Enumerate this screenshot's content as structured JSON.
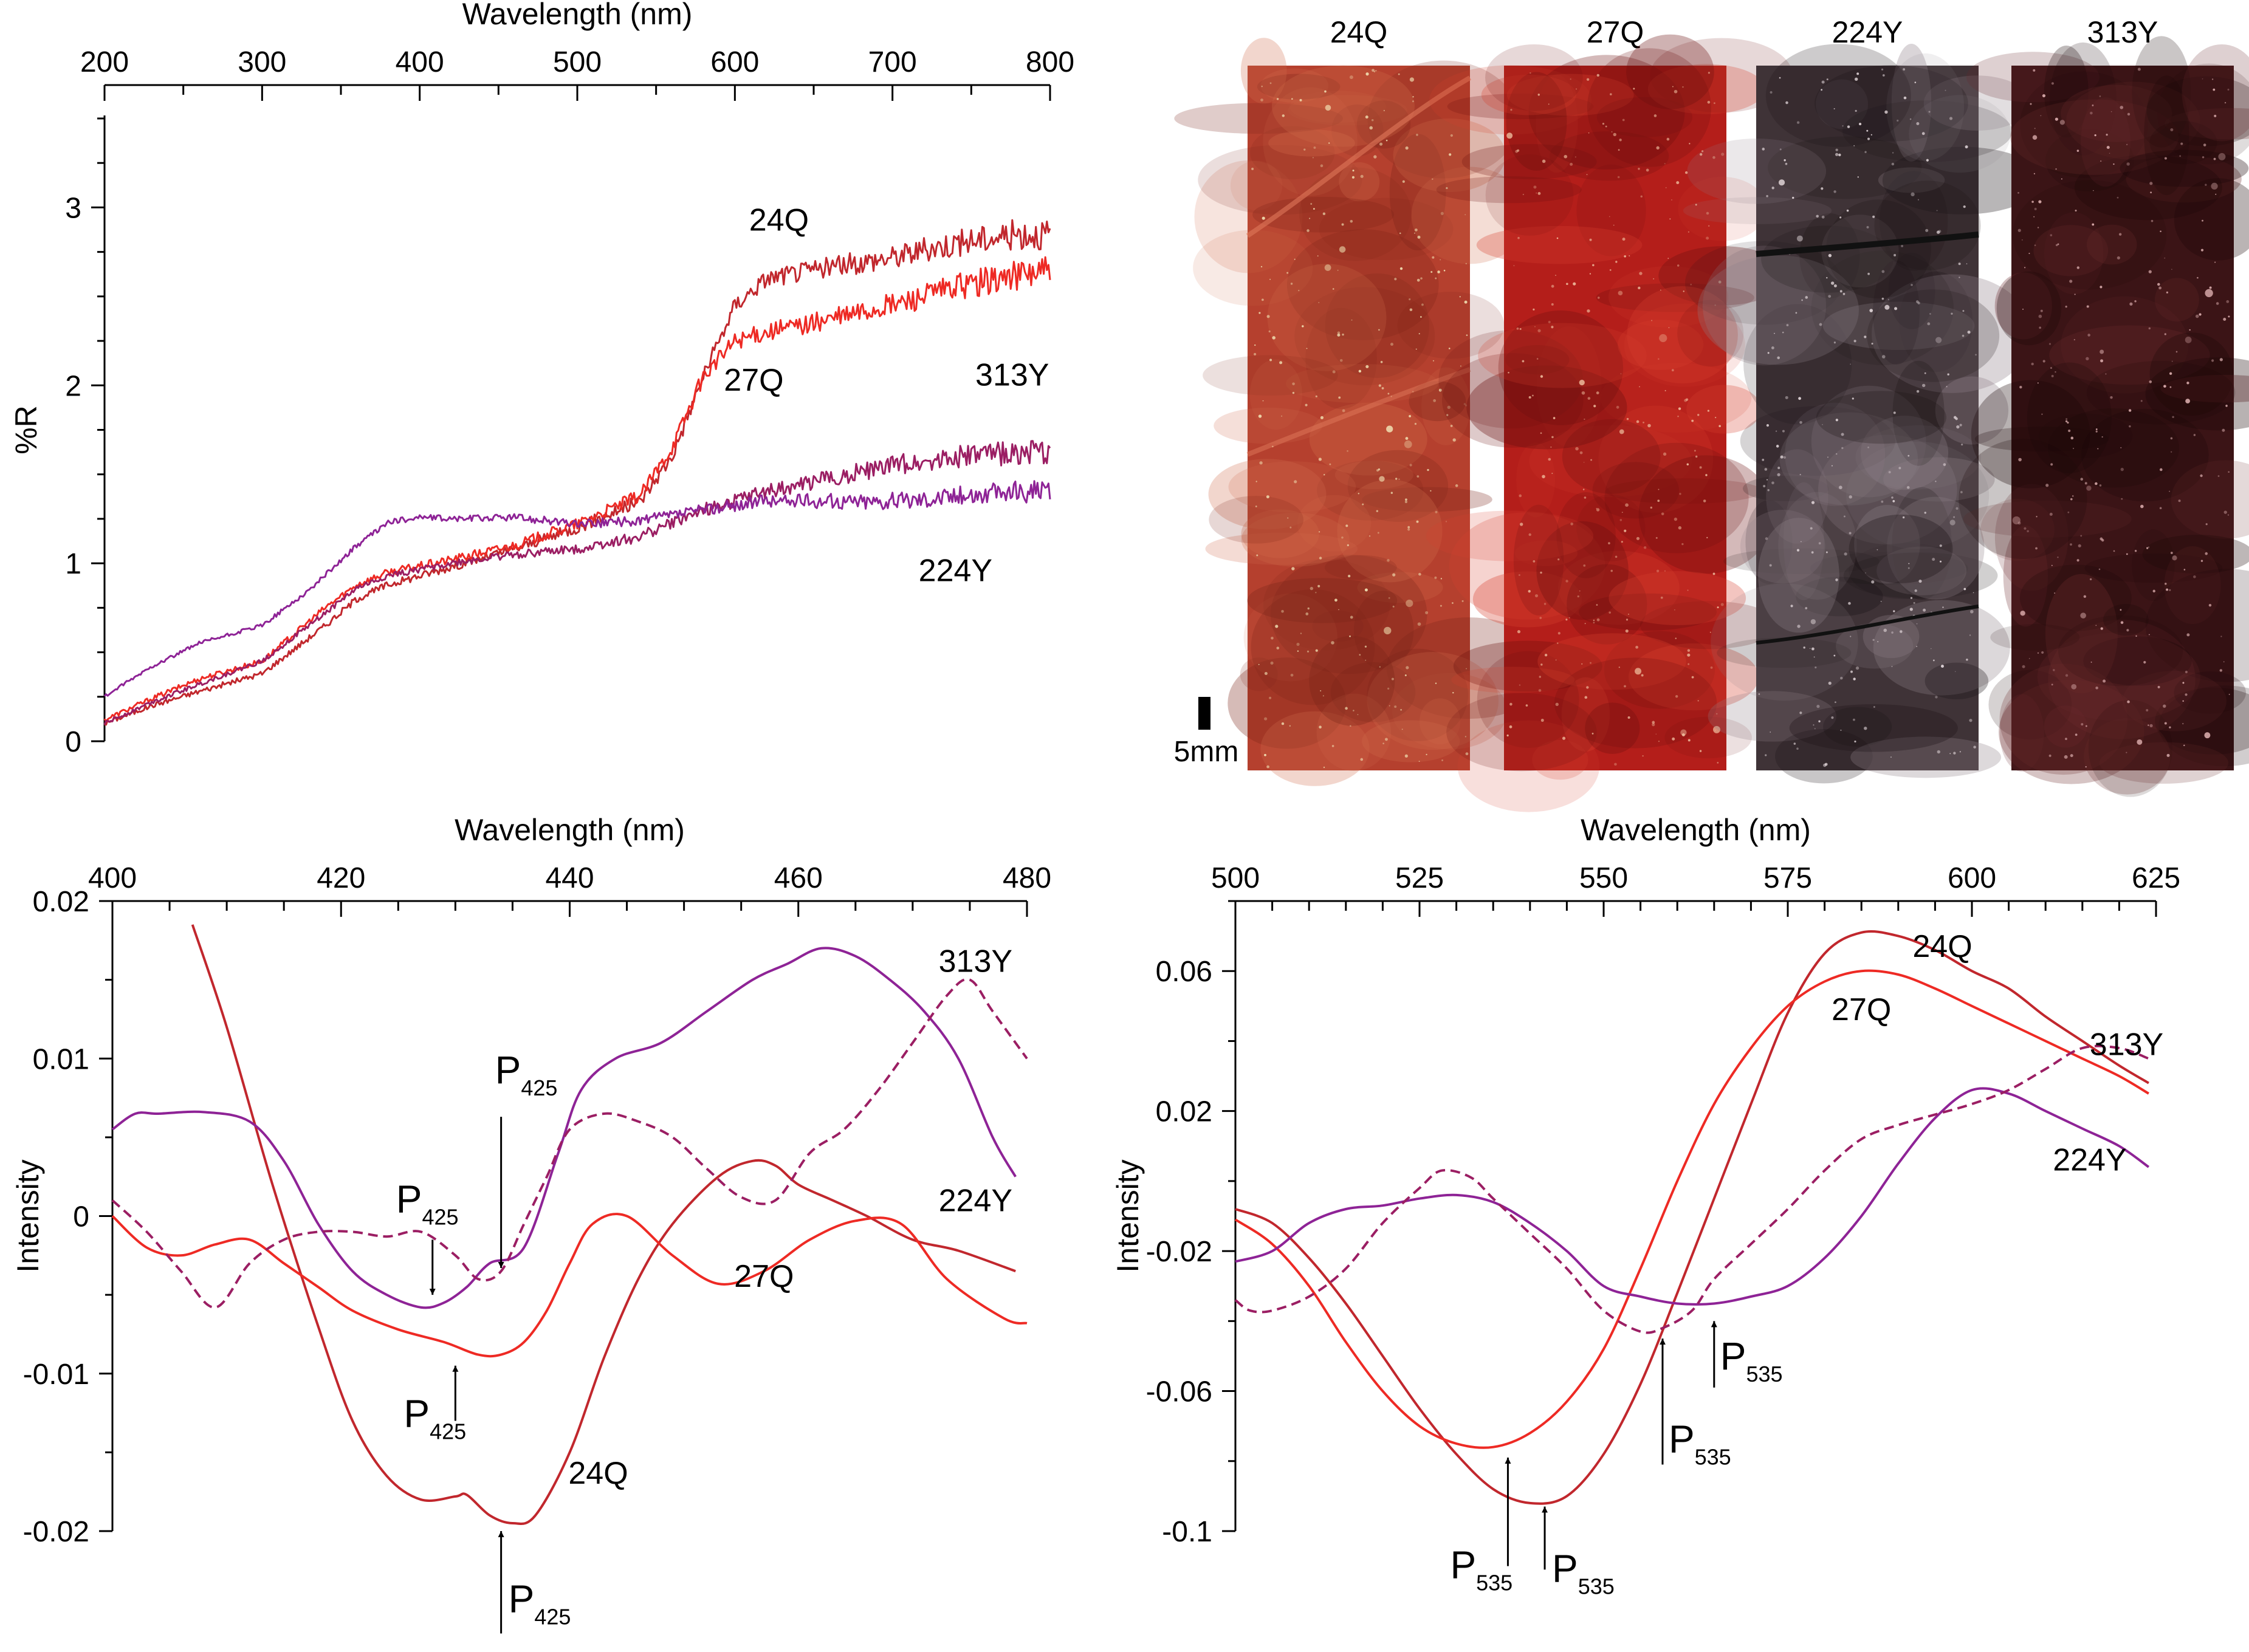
{
  "colors": {
    "red": "#ee2a24",
    "darkred": "#c1272d",
    "purple": "#8e2396",
    "magenta": "#9b1e63",
    "axis": "#000000"
  },
  "chart_data": [
    {
      "id": "reflectance",
      "type": "line",
      "title": "",
      "xlabel": "Wavelength (nm)",
      "ylabel": "%R",
      "xlim": [
        200,
        800
      ],
      "ylim": [
        0,
        3.5
      ],
      "xticks": [
        200,
        300,
        400,
        500,
        600,
        700,
        800
      ],
      "yticks": [
        0,
        1,
        2,
        3
      ],
      "series": [
        {
          "name": "24Q",
          "color": "#c1272d",
          "noise": 0.11,
          "x": [
            200,
            230,
            260,
            300,
            340,
            360,
            380,
            420,
            460,
            500,
            540,
            560,
            580,
            600,
            620,
            650,
            700,
            740,
            780,
            800
          ],
          "y": [
            0.1,
            0.2,
            0.28,
            0.38,
            0.65,
            0.8,
            0.88,
            0.98,
            1.08,
            1.2,
            1.35,
            1.6,
            2.05,
            2.45,
            2.6,
            2.65,
            2.72,
            2.8,
            2.85,
            2.85
          ]
        },
        {
          "name": "27Q",
          "color": "#ee2a24",
          "noise": 0.11,
          "x": [
            200,
            230,
            260,
            300,
            340,
            360,
            380,
            420,
            460,
            500,
            540,
            560,
            580,
            600,
            620,
            650,
            700,
            740,
            780,
            800
          ],
          "y": [
            0.12,
            0.24,
            0.35,
            0.45,
            0.75,
            0.88,
            0.95,
            1.02,
            1.1,
            1.22,
            1.38,
            1.65,
            2.05,
            2.25,
            2.3,
            2.35,
            2.45,
            2.55,
            2.62,
            2.65
          ]
        },
        {
          "name": "313Y",
          "color": "#9b1e63",
          "noise": 0.09,
          "x": [
            200,
            230,
            260,
            300,
            340,
            360,
            380,
            420,
            460,
            500,
            540,
            580,
            620,
            660,
            700,
            740,
            780,
            800
          ],
          "y": [
            0.1,
            0.22,
            0.32,
            0.45,
            0.72,
            0.86,
            0.93,
            1.0,
            1.05,
            1.08,
            1.15,
            1.3,
            1.4,
            1.48,
            1.55,
            1.6,
            1.62,
            1.62
          ]
        },
        {
          "name": "224Y",
          "color": "#8e2396",
          "noise": 0.08,
          "x": [
            200,
            230,
            260,
            300,
            330,
            360,
            380,
            400,
            420,
            460,
            500,
            540,
            580,
            620,
            660,
            700,
            740,
            780,
            800
          ],
          "y": [
            0.25,
            0.42,
            0.55,
            0.65,
            0.85,
            1.1,
            1.23,
            1.26,
            1.25,
            1.26,
            1.22,
            1.24,
            1.3,
            1.35,
            1.35,
            1.35,
            1.38,
            1.4,
            1.4
          ]
        }
      ],
      "annotations": [
        {
          "text": "24Q",
          "x": 628,
          "y": 2.87
        },
        {
          "text": "27Q",
          "x": 612,
          "y": 1.97
        },
        {
          "text": "313Y",
          "x": 776,
          "y": 2.0
        },
        {
          "text": "224Y",
          "x": 740,
          "y": 0.9
        }
      ]
    },
    {
      "id": "intensity_425",
      "type": "line",
      "title": "",
      "xlabel": "Wavelength (nm)",
      "ylabel": "Intensity",
      "xlim": [
        400,
        480
      ],
      "ylim": [
        -0.02,
        0.02
      ],
      "xticks": [
        400,
        420,
        440,
        460,
        480
      ],
      "yticks": [
        0.02,
        0.01,
        0,
        -0.01,
        -0.02
      ],
      "yticklabels": [
        "0.02",
        "0.01",
        "0",
        "-0.01",
        "-0.02"
      ],
      "series": [
        {
          "name": "24Q",
          "color": "#c1272d",
          "dash": false,
          "x": [
            407,
            410,
            414,
            418,
            421,
            424,
            427,
            430,
            431,
            433,
            435,
            437,
            440,
            443,
            446,
            449,
            453,
            456,
            458,
            460,
            463,
            466,
            470,
            474,
            479
          ],
          "y": [
            0.0185,
            0.012,
            0.002,
            -0.007,
            -0.013,
            -0.0165,
            -0.018,
            -0.0178,
            -0.0177,
            -0.019,
            -0.0195,
            -0.019,
            -0.015,
            -0.009,
            -0.004,
            -0.0005,
            0.0025,
            0.0035,
            0.0032,
            0.002,
            0.001,
            0.0,
            -0.0015,
            -0.0022,
            -0.0035
          ]
        },
        {
          "name": "27Q",
          "color": "#ee2a24",
          "dash": false,
          "x": [
            400,
            403,
            406,
            409,
            412,
            415,
            418,
            421,
            425,
            429,
            432,
            434,
            436,
            438,
            440,
            442,
            445,
            449,
            453,
            457,
            461,
            465,
            469,
            473,
            478,
            480
          ],
          "y": [
            0.0,
            -0.002,
            -0.0025,
            -0.0018,
            -0.0015,
            -0.003,
            -0.0045,
            -0.006,
            -0.0072,
            -0.008,
            -0.0088,
            -0.0088,
            -0.008,
            -0.006,
            -0.003,
            -0.0005,
            0.0,
            -0.0025,
            -0.0043,
            -0.0035,
            -0.0015,
            -0.0003,
            -0.0005,
            -0.004,
            -0.0065,
            -0.0068
          ]
        },
        {
          "name": "224Y",
          "color": "#8e2396",
          "dash": false,
          "x": [
            400,
            402,
            404,
            408,
            412,
            415,
            418,
            421,
            424,
            427,
            429,
            431,
            433,
            436,
            439,
            441,
            444,
            448,
            452,
            456,
            459,
            462,
            465,
            468,
            471,
            474,
            477,
            479
          ],
          "y": [
            0.0055,
            0.0065,
            0.0065,
            0.0066,
            0.006,
            0.0035,
            -0.0005,
            -0.0035,
            -0.005,
            -0.0058,
            -0.0055,
            -0.0045,
            -0.003,
            -0.002,
            0.004,
            0.008,
            0.01,
            0.011,
            0.013,
            0.015,
            0.016,
            0.017,
            0.0165,
            0.015,
            0.013,
            0.01,
            0.005,
            0.0025
          ]
        },
        {
          "name": "313Y",
          "color": "#9b1e63",
          "dash": true,
          "x": [
            400,
            403,
            406,
            409,
            412,
            415,
            418,
            421,
            424,
            427,
            430,
            432,
            434,
            436,
            438,
            440,
            443,
            446,
            449,
            452,
            455,
            458,
            461,
            464,
            467,
            470,
            473,
            475,
            477,
            480
          ],
          "y": [
            0.001,
            -0.001,
            -0.0035,
            -0.0058,
            -0.003,
            -0.0015,
            -0.001,
            -0.001,
            -0.0013,
            -0.001,
            -0.0025,
            -0.004,
            -0.0035,
            -0.0005,
            0.0025,
            0.0055,
            0.0065,
            0.006,
            0.005,
            0.003,
            0.0012,
            0.001,
            0.004,
            0.0055,
            0.008,
            0.011,
            0.014,
            0.015,
            0.013,
            0.01
          ]
        }
      ],
      "annotations": [
        {
          "text": "313Y",
          "x": 475.5,
          "y": 0.0155
        },
        {
          "text": "224Y",
          "x": 475.5,
          "y": 0.0003
        },
        {
          "text": "27Q",
          "x": 457,
          "y": -0.0045
        },
        {
          "text": "24Q",
          "x": 442.5,
          "y": -0.017
        }
      ],
      "markers": [
        {
          "label": "P",
          "sub": "425",
          "x": 434,
          "dir": "down",
          "y_tip": -0.0033,
          "y_tail": 0.0063
        },
        {
          "label": "P",
          "sub": "425",
          "x": 428,
          "dir": "down",
          "y_tip": -0.005,
          "y_tail": -0.0015
        },
        {
          "label": "P",
          "sub": "425",
          "x": 430,
          "dir": "up",
          "y_tip": -0.0095,
          "y_tail": -0.013
        },
        {
          "label": "P",
          "sub": "425",
          "x": 434,
          "dir": "up",
          "y_tip": -0.02,
          "y_tail": -0.0265
        }
      ]
    },
    {
      "id": "intensity_535",
      "type": "line",
      "title": "",
      "xlabel": "Wavelength (nm)",
      "ylabel": "Intensity",
      "xlim": [
        500,
        625
      ],
      "ylim": [
        -0.1,
        0.08
      ],
      "xticks": [
        500,
        525,
        550,
        575,
        600,
        625
      ],
      "yticks": [
        0.06,
        0.02,
        -0.02,
        -0.06,
        -0.1
      ],
      "yticklabels": [
        "0.06",
        "0.02",
        "-0.02",
        "-0.06",
        "-0.1"
      ],
      "series": [
        {
          "name": "24Q",
          "color": "#c1272d",
          "dash": false,
          "x": [
            500,
            505,
            510,
            515,
            520,
            525,
            530,
            535,
            540,
            545,
            550,
            555,
            560,
            565,
            570,
            575,
            580,
            585,
            590,
            595,
            600,
            605,
            610,
            615,
            620,
            624
          ],
          "y": [
            -0.008,
            -0.012,
            -0.022,
            -0.035,
            -0.05,
            -0.065,
            -0.078,
            -0.088,
            -0.092,
            -0.09,
            -0.078,
            -0.058,
            -0.032,
            -0.005,
            0.022,
            0.048,
            0.065,
            0.071,
            0.07,
            0.066,
            0.06,
            0.055,
            0.047,
            0.04,
            0.033,
            0.028
          ]
        },
        {
          "name": "27Q",
          "color": "#ee2a24",
          "dash": false,
          "x": [
            500,
            505,
            510,
            515,
            520,
            525,
            530,
            535,
            540,
            545,
            550,
            555,
            560,
            565,
            570,
            575,
            580,
            585,
            590,
            595,
            600,
            605,
            610,
            615,
            620,
            624
          ],
          "y": [
            -0.011,
            -0.018,
            -0.03,
            -0.046,
            -0.06,
            -0.07,
            -0.075,
            -0.076,
            -0.072,
            -0.063,
            -0.048,
            -0.025,
            0.0,
            0.022,
            0.038,
            0.05,
            0.057,
            0.06,
            0.059,
            0.055,
            0.05,
            0.045,
            0.04,
            0.035,
            0.03,
            0.025
          ]
        },
        {
          "name": "224Y",
          "color": "#8e2396",
          "dash": false,
          "x": [
            500,
            505,
            510,
            515,
            520,
            525,
            530,
            535,
            540,
            545,
            550,
            555,
            560,
            565,
            570,
            575,
            580,
            585,
            590,
            595,
            600,
            605,
            610,
            615,
            620,
            624
          ],
          "y": [
            -0.023,
            -0.02,
            -0.012,
            -0.008,
            -0.007,
            -0.005,
            -0.004,
            -0.006,
            -0.012,
            -0.02,
            -0.03,
            -0.033,
            -0.035,
            -0.035,
            -0.033,
            -0.03,
            -0.022,
            -0.01,
            0.005,
            0.018,
            0.026,
            0.025,
            0.02,
            0.015,
            0.01,
            0.004
          ]
        },
        {
          "name": "313Y",
          "color": "#9b1e63",
          "dash": true,
          "x": [
            500,
            502,
            505,
            510,
            515,
            520,
            525,
            528,
            532,
            535,
            540,
            545,
            550,
            555,
            558,
            562,
            565,
            570,
            575,
            580,
            585,
            590,
            595,
            600,
            605,
            610,
            615,
            620,
            624
          ],
          "y": [
            -0.034,
            -0.037,
            -0.037,
            -0.033,
            -0.025,
            -0.012,
            -0.002,
            0.003,
            0.001,
            -0.005,
            -0.015,
            -0.025,
            -0.037,
            -0.043,
            -0.042,
            -0.037,
            -0.028,
            -0.018,
            -0.008,
            0.003,
            0.012,
            0.016,
            0.019,
            0.022,
            0.026,
            0.032,
            0.038,
            0.038,
            0.035
          ]
        }
      ],
      "annotations": [
        {
          "text": "24Q",
          "x": 596,
          "y": 0.064
        },
        {
          "text": "27Q",
          "x": 585,
          "y": 0.046
        },
        {
          "text": "313Y",
          "x": 621,
          "y": 0.036
        },
        {
          "text": "224Y",
          "x": 616,
          "y": 0.003
        }
      ],
      "markers": [
        {
          "label": "P",
          "sub": "535",
          "x": 565,
          "dir": "up",
          "y_tip": -0.04,
          "y_tail": -0.059
        },
        {
          "label": "P",
          "sub": "535",
          "x": 558,
          "dir": "up",
          "y_tip": -0.045,
          "y_tail": -0.081
        },
        {
          "label": "P",
          "sub": "535",
          "x": 537,
          "dir": "up",
          "y_tip": -0.079,
          "y_tail": -0.11
        },
        {
          "label": "P",
          "sub": "535",
          "x": 542,
          "dir": "up",
          "y_tip": -0.093,
          "y_tail": -0.111
        }
      ]
    }
  ],
  "photos": {
    "samples": [
      {
        "label": "24Q",
        "base": "#b5402e",
        "light": "#d06a4a",
        "dark": "#7a2418",
        "speck": "#f3e7b8"
      },
      {
        "label": "27Q",
        "base": "#b41e1a",
        "light": "#d8402e",
        "dark": "#6a0f0e",
        "speck": "#f0c0a0"
      },
      {
        "label": "224Y",
        "base": "#3f3337",
        "light": "#8e8088",
        "dark": "#1a1215",
        "speck": "#e8dde0"
      },
      {
        "label": "313Y",
        "base": "#3b1416",
        "light": "#6a2a2c",
        "dark": "#1a0708",
        "speck": "#e6b8b8"
      }
    ],
    "scale_label": "5mm"
  }
}
